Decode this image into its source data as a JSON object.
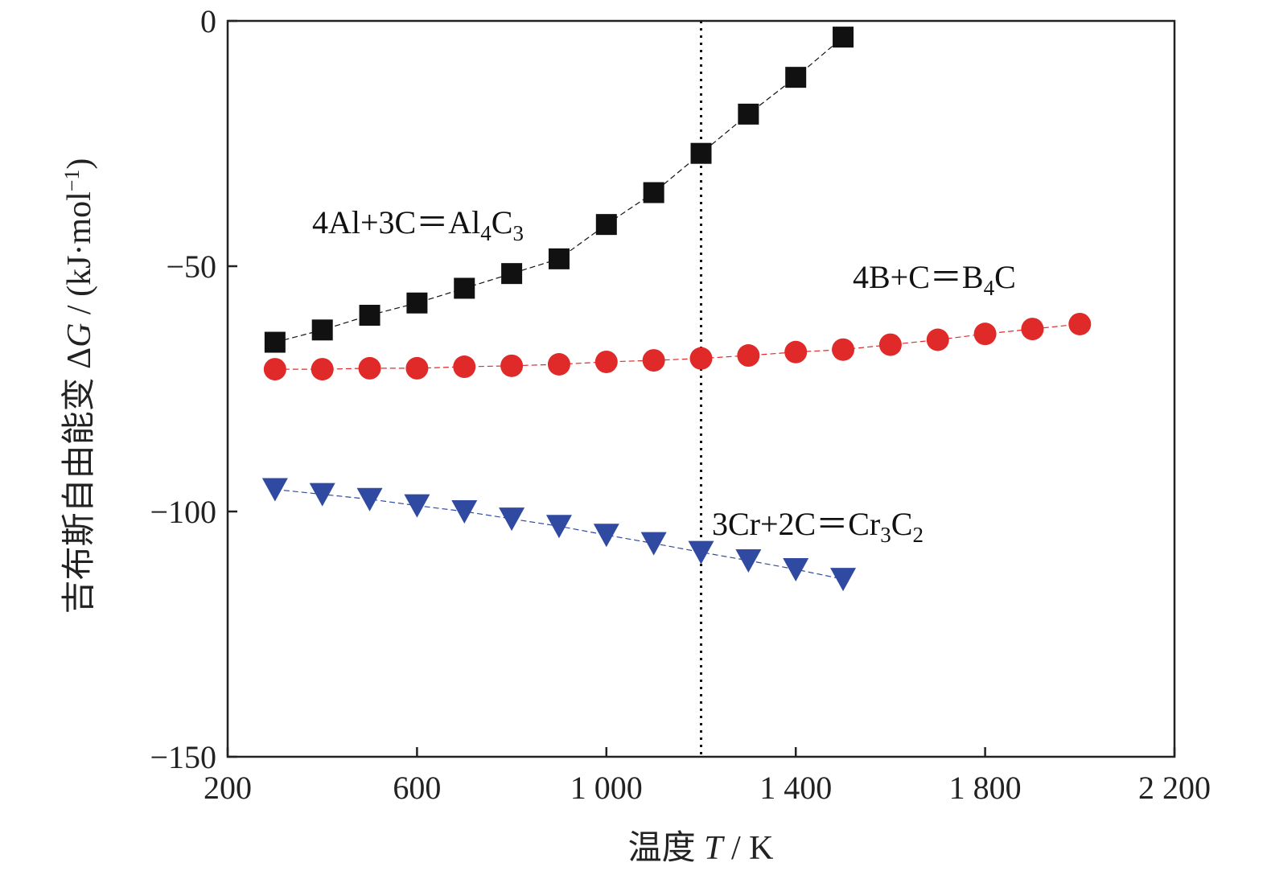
{
  "chart_data": {
    "type": "scatter",
    "title": "",
    "xlabel_prefix": "温度 ",
    "xlabel_var": "T",
    "xlabel_unit": " / K",
    "ylabel_prefix": "吉布斯自由能变 Δ",
    "ylabel_var": "G",
    "ylabel_unit_pre": " / (kJ·mol",
    "ylabel_unit_sup": "−1",
    "ylabel_unit_post": ")",
    "xlim": [
      200,
      2200
    ],
    "ylim": [
      -150,
      0
    ],
    "x_ticks": [
      200,
      600,
      1000,
      1400,
      1800,
      2200
    ],
    "x_tick_labels": [
      "200",
      "600",
      "1 000",
      "1 400",
      "1 800",
      "2 200"
    ],
    "y_ticks": [
      0,
      -50,
      -100,
      -150
    ],
    "y_tick_labels": [
      "0",
      "−50",
      "−100",
      "−150"
    ],
    "grid": false,
    "legend": "none",
    "vline_x": 1200,
    "series": [
      {
        "marker": "square",
        "color": "#111111",
        "x": [
          300,
          400,
          500,
          600,
          700,
          800,
          900,
          1000,
          1100,
          1200,
          1300,
          1400,
          1500
        ],
        "y": [
          -65.5,
          -63,
          -60,
          -57.5,
          -54.5,
          -51.5,
          -48.5,
          -41.5,
          -35,
          -27,
          -19,
          -11.5,
          -3.3
        ]
      },
      {
        "marker": "circle",
        "color": "#e02a2a",
        "x": [
          300,
          400,
          500,
          600,
          700,
          800,
          900,
          1000,
          1100,
          1200,
          1300,
          1400,
          1500,
          1600,
          1700,
          1800,
          1900,
          2000
        ],
        "y": [
          -71,
          -71,
          -70.8,
          -70.8,
          -70.5,
          -70.3,
          -70,
          -69.5,
          -69.2,
          -68.8,
          -68.2,
          -67.5,
          -67,
          -66,
          -65,
          -63.8,
          -62.8,
          -61.8
        ]
      },
      {
        "marker": "triangle-down",
        "color": "#2f4aa0",
        "x": [
          300,
          400,
          500,
          600,
          700,
          800,
          900,
          1000,
          1100,
          1200,
          1300,
          1400,
          1500
        ],
        "y": [
          -95.5,
          -96.5,
          -97.5,
          -98.8,
          -100,
          -101.5,
          -103,
          -104.8,
          -106.5,
          -108.3,
          -110,
          -111.8,
          -113.8
        ]
      }
    ],
    "annotations": [
      {
        "parts": [
          [
            "4Al+3C＝Al",
            ""
          ],
          [
            "4",
            "sub"
          ],
          [
            "C",
            ""
          ],
          [
            "3",
            "sub"
          ]
        ]
      },
      {
        "parts": [
          [
            "4B+C＝B",
            ""
          ],
          [
            "4",
            "sub"
          ],
          [
            "C",
            ""
          ]
        ]
      },
      {
        "parts": [
          [
            "3Cr+2C＝Cr",
            ""
          ],
          [
            "3",
            "sub"
          ],
          [
            "C",
            ""
          ],
          [
            "2",
            "sub"
          ]
        ]
      }
    ]
  }
}
